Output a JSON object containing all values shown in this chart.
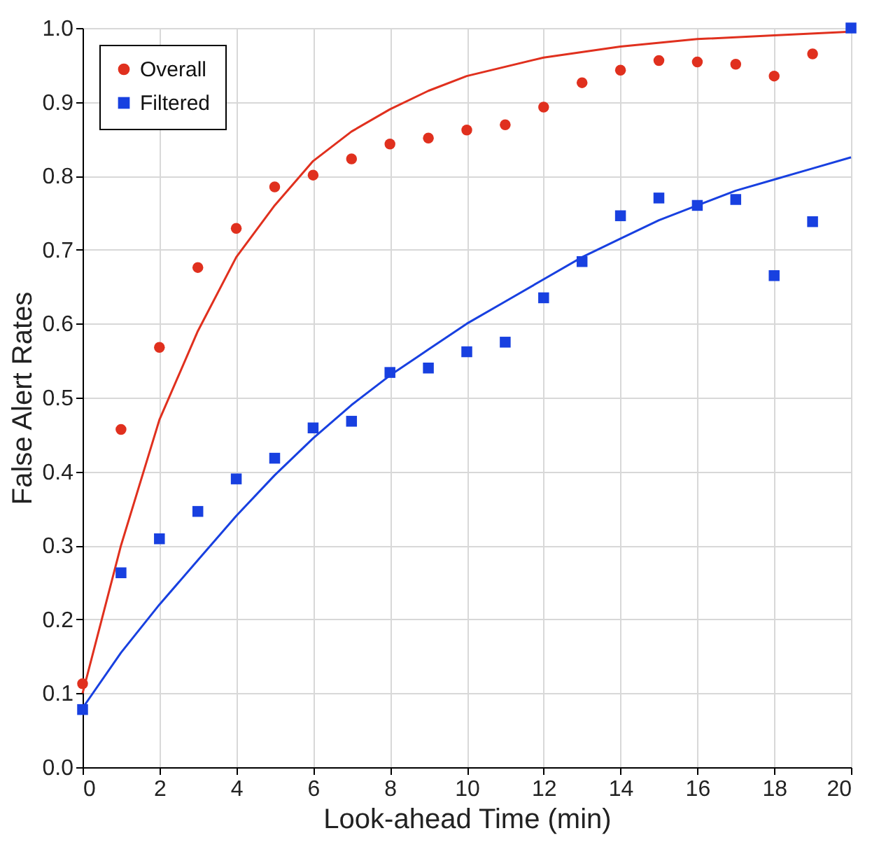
{
  "chart_data": {
    "type": "scatter",
    "xlabel": "Look-ahead Time (min)",
    "ylabel": "False Alert Rates",
    "xlim": [
      0,
      20
    ],
    "xticks": [
      0,
      2,
      4,
      6,
      8,
      10,
      12,
      14,
      16,
      18,
      20
    ],
    "ylim": [
      0,
      1
    ],
    "yticks": [
      {
        "value": 0,
        "label": "0.0"
      },
      0.1,
      0.2,
      0.3,
      0.4,
      0.5,
      0.6,
      0.7,
      0.8,
      0.9,
      {
        "value": 1,
        "label": "1.0"
      }
    ],
    "grid": true,
    "legend": "top left",
    "series": [
      {
        "name": "Overall",
        "color": "#e0301e",
        "marker": "circle",
        "x": [
          0,
          1,
          2,
          3,
          4,
          5,
          6,
          7,
          8,
          9,
          10,
          11,
          12,
          13,
          14,
          15,
          16,
          17,
          18,
          19
        ],
        "values": [
          0.113,
          0.457,
          0.568,
          0.676,
          0.729,
          0.785,
          0.801,
          0.823,
          0.843,
          0.851,
          0.862,
          0.869,
          0.893,
          0.926,
          0.943,
          0.956,
          0.954,
          0.951,
          0.935,
          0.965
        ]
      },
      {
        "name": "Filtered",
        "color": "#1840e0",
        "marker": "square",
        "x": [
          0,
          1,
          2,
          3,
          4,
          5,
          6,
          7,
          8,
          9,
          10,
          11,
          12,
          13,
          14,
          15,
          16,
          17,
          18,
          19,
          20
        ],
        "values": [
          0.078,
          0.263,
          0.309,
          0.346,
          0.39,
          0.418,
          0.459,
          0.468,
          0.534,
          0.54,
          0.562,
          0.575,
          0.635,
          0.684,
          0.746,
          0.77,
          0.76,
          0.768,
          0.665,
          0.738,
          1.0
        ]
      },
      {
        "type": "line",
        "color": "#e0301e",
        "marker": "none",
        "line_style": "solid",
        "x": [
          0,
          1,
          2,
          3,
          4,
          5,
          6,
          7,
          8,
          9,
          10,
          12,
          14,
          16,
          18,
          20
        ],
        "values": [
          0.1,
          0.3,
          0.47,
          0.59,
          0.69,
          0.76,
          0.82,
          0.86,
          0.89,
          0.915,
          0.935,
          0.96,
          0.975,
          0.985,
          0.99,
          0.995
        ]
      },
      {
        "type": "line",
        "color": "#1840e0",
        "marker": "none",
        "line_style": "solid",
        "x": [
          0,
          1,
          2,
          3,
          4,
          5,
          6,
          7,
          8,
          9,
          10,
          11,
          12,
          13,
          14,
          15,
          16,
          17,
          18,
          19,
          20
        ],
        "values": [
          0.08,
          0.155,
          0.22,
          0.28,
          0.34,
          0.395,
          0.445,
          0.49,
          0.53,
          0.565,
          0.6,
          0.63,
          0.66,
          0.69,
          0.715,
          0.74,
          0.76,
          0.78,
          0.795,
          0.81,
          0.825
        ]
      }
    ]
  }
}
